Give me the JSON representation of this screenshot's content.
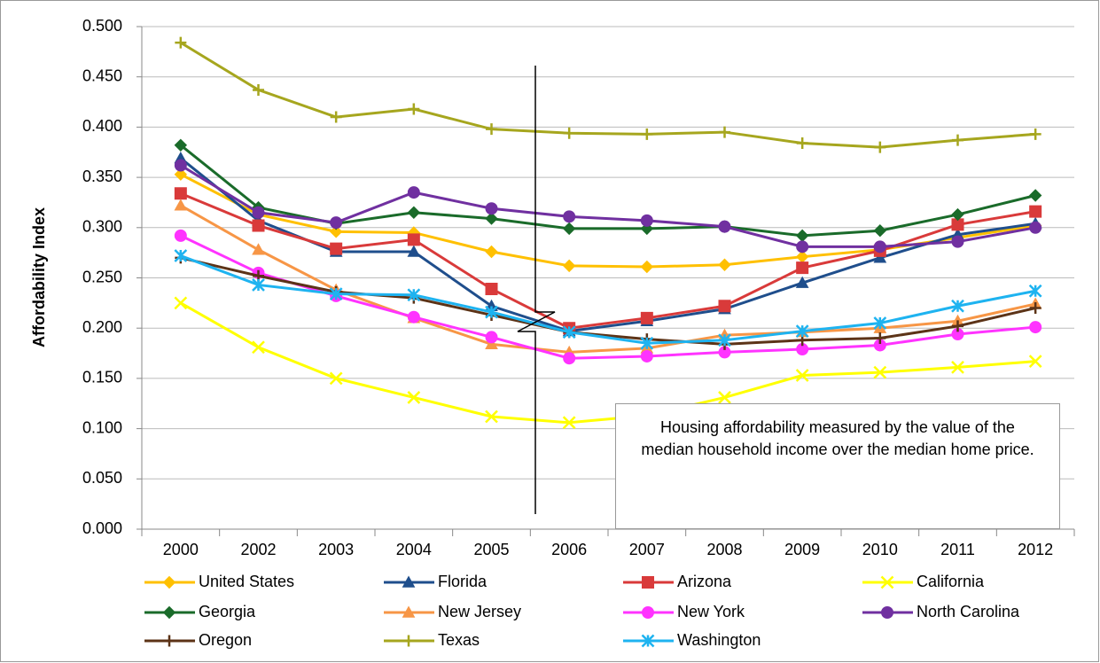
{
  "chart_data": {
    "type": "line",
    "y_label": "Affordability Index",
    "annotation": "Housing affordability measured by the value of the median household income over the median home price.",
    "categories": [
      "2000",
      "2002",
      "2003",
      "2004",
      "2005",
      "2006",
      "2007",
      "2008",
      "2009",
      "2010",
      "2011",
      "2012"
    ],
    "ylim": [
      0,
      0.5
    ],
    "yticks": [
      {
        "value": 0,
        "label": "0.000"
      },
      {
        "value": 0.05,
        "label": "0.050"
      },
      {
        "value": 0.1,
        "label": "0.100"
      },
      {
        "value": 0.15,
        "label": "0.150"
      },
      {
        "value": 0.2,
        "label": "0.200"
      },
      {
        "value": 0.25,
        "label": "0.250"
      },
      {
        "value": 0.3,
        "label": "0.300"
      },
      {
        "value": 0.35,
        "label": "0.350"
      },
      {
        "value": 0.4,
        "label": "0.400"
      },
      {
        "value": 0.45,
        "label": "0.450"
      },
      {
        "value": 0.5,
        "label": "0.500"
      }
    ],
    "grid": true,
    "legend": "bottom",
    "series": [
      {
        "name": "United States",
        "color": "#FFC000",
        "marker": "diamond",
        "values": [
          0.353,
          0.313,
          0.296,
          0.295,
          0.276,
          0.262,
          0.261,
          0.263,
          0.271,
          0.278,
          0.29,
          0.302
        ]
      },
      {
        "name": "Florida",
        "color": "#1F4E8C",
        "marker": "triangle",
        "values": [
          0.369,
          0.307,
          0.276,
          0.276,
          0.222,
          0.197,
          0.207,
          0.219,
          0.245,
          0.27,
          0.293,
          0.304
        ]
      },
      {
        "name": "Arizona",
        "color": "#D93A3A",
        "marker": "square",
        "values": [
          0.334,
          0.302,
          0.279,
          0.288,
          0.239,
          0.2,
          0.21,
          0.222,
          0.26,
          0.277,
          0.303,
          0.316
        ]
      },
      {
        "name": "California",
        "color": "#FFFF00",
        "marker": "x",
        "values": [
          0.225,
          0.181,
          0.15,
          0.131,
          0.112,
          0.106,
          0.113,
          0.131,
          0.153,
          0.156,
          0.161,
          0.167
        ]
      },
      {
        "name": "Georgia",
        "color": "#1A6B2A",
        "marker": "diamond",
        "values": [
          0.382,
          0.32,
          0.304,
          0.315,
          0.309,
          0.299,
          0.299,
          0.301,
          0.292,
          0.297,
          0.313,
          0.332
        ]
      },
      {
        "name": "New Jersey",
        "color": "#F79646",
        "marker": "triangle",
        "values": [
          0.322,
          0.278,
          0.238,
          0.21,
          0.184,
          0.176,
          0.18,
          0.193,
          0.196,
          0.2,
          0.207,
          0.224
        ]
      },
      {
        "name": "New York",
        "color": "#FF33FF",
        "marker": "circle",
        "values": [
          0.292,
          0.255,
          0.232,
          0.211,
          0.191,
          0.17,
          0.172,
          0.176,
          0.179,
          0.183,
          0.194,
          0.201
        ]
      },
      {
        "name": "North Carolina",
        "color": "#7030A0",
        "marker": "circle",
        "values": [
          0.362,
          0.315,
          0.305,
          0.335,
          0.319,
          0.311,
          0.307,
          0.301,
          0.281,
          0.281,
          0.286,
          0.3
        ]
      },
      {
        "name": "Oregon",
        "color": "#5C3317",
        "marker": "plus",
        "values": [
          0.27,
          0.252,
          0.236,
          0.23,
          0.213,
          0.196,
          0.189,
          0.184,
          0.188,
          0.19,
          0.202,
          0.22
        ]
      },
      {
        "name": "Texas",
        "color": "#A6A61E",
        "marker": "plus",
        "values": [
          0.484,
          0.437,
          0.41,
          0.418,
          0.398,
          0.394,
          0.393,
          0.395,
          0.384,
          0.38,
          0.387,
          0.393
        ]
      },
      {
        "name": "Washington",
        "color": "#1EB3F0",
        "marker": "asterisk",
        "values": [
          0.272,
          0.243,
          0.234,
          0.233,
          0.216,
          0.196,
          0.185,
          0.188,
          0.197,
          0.205,
          0.222,
          0.237
        ]
      }
    ]
  }
}
